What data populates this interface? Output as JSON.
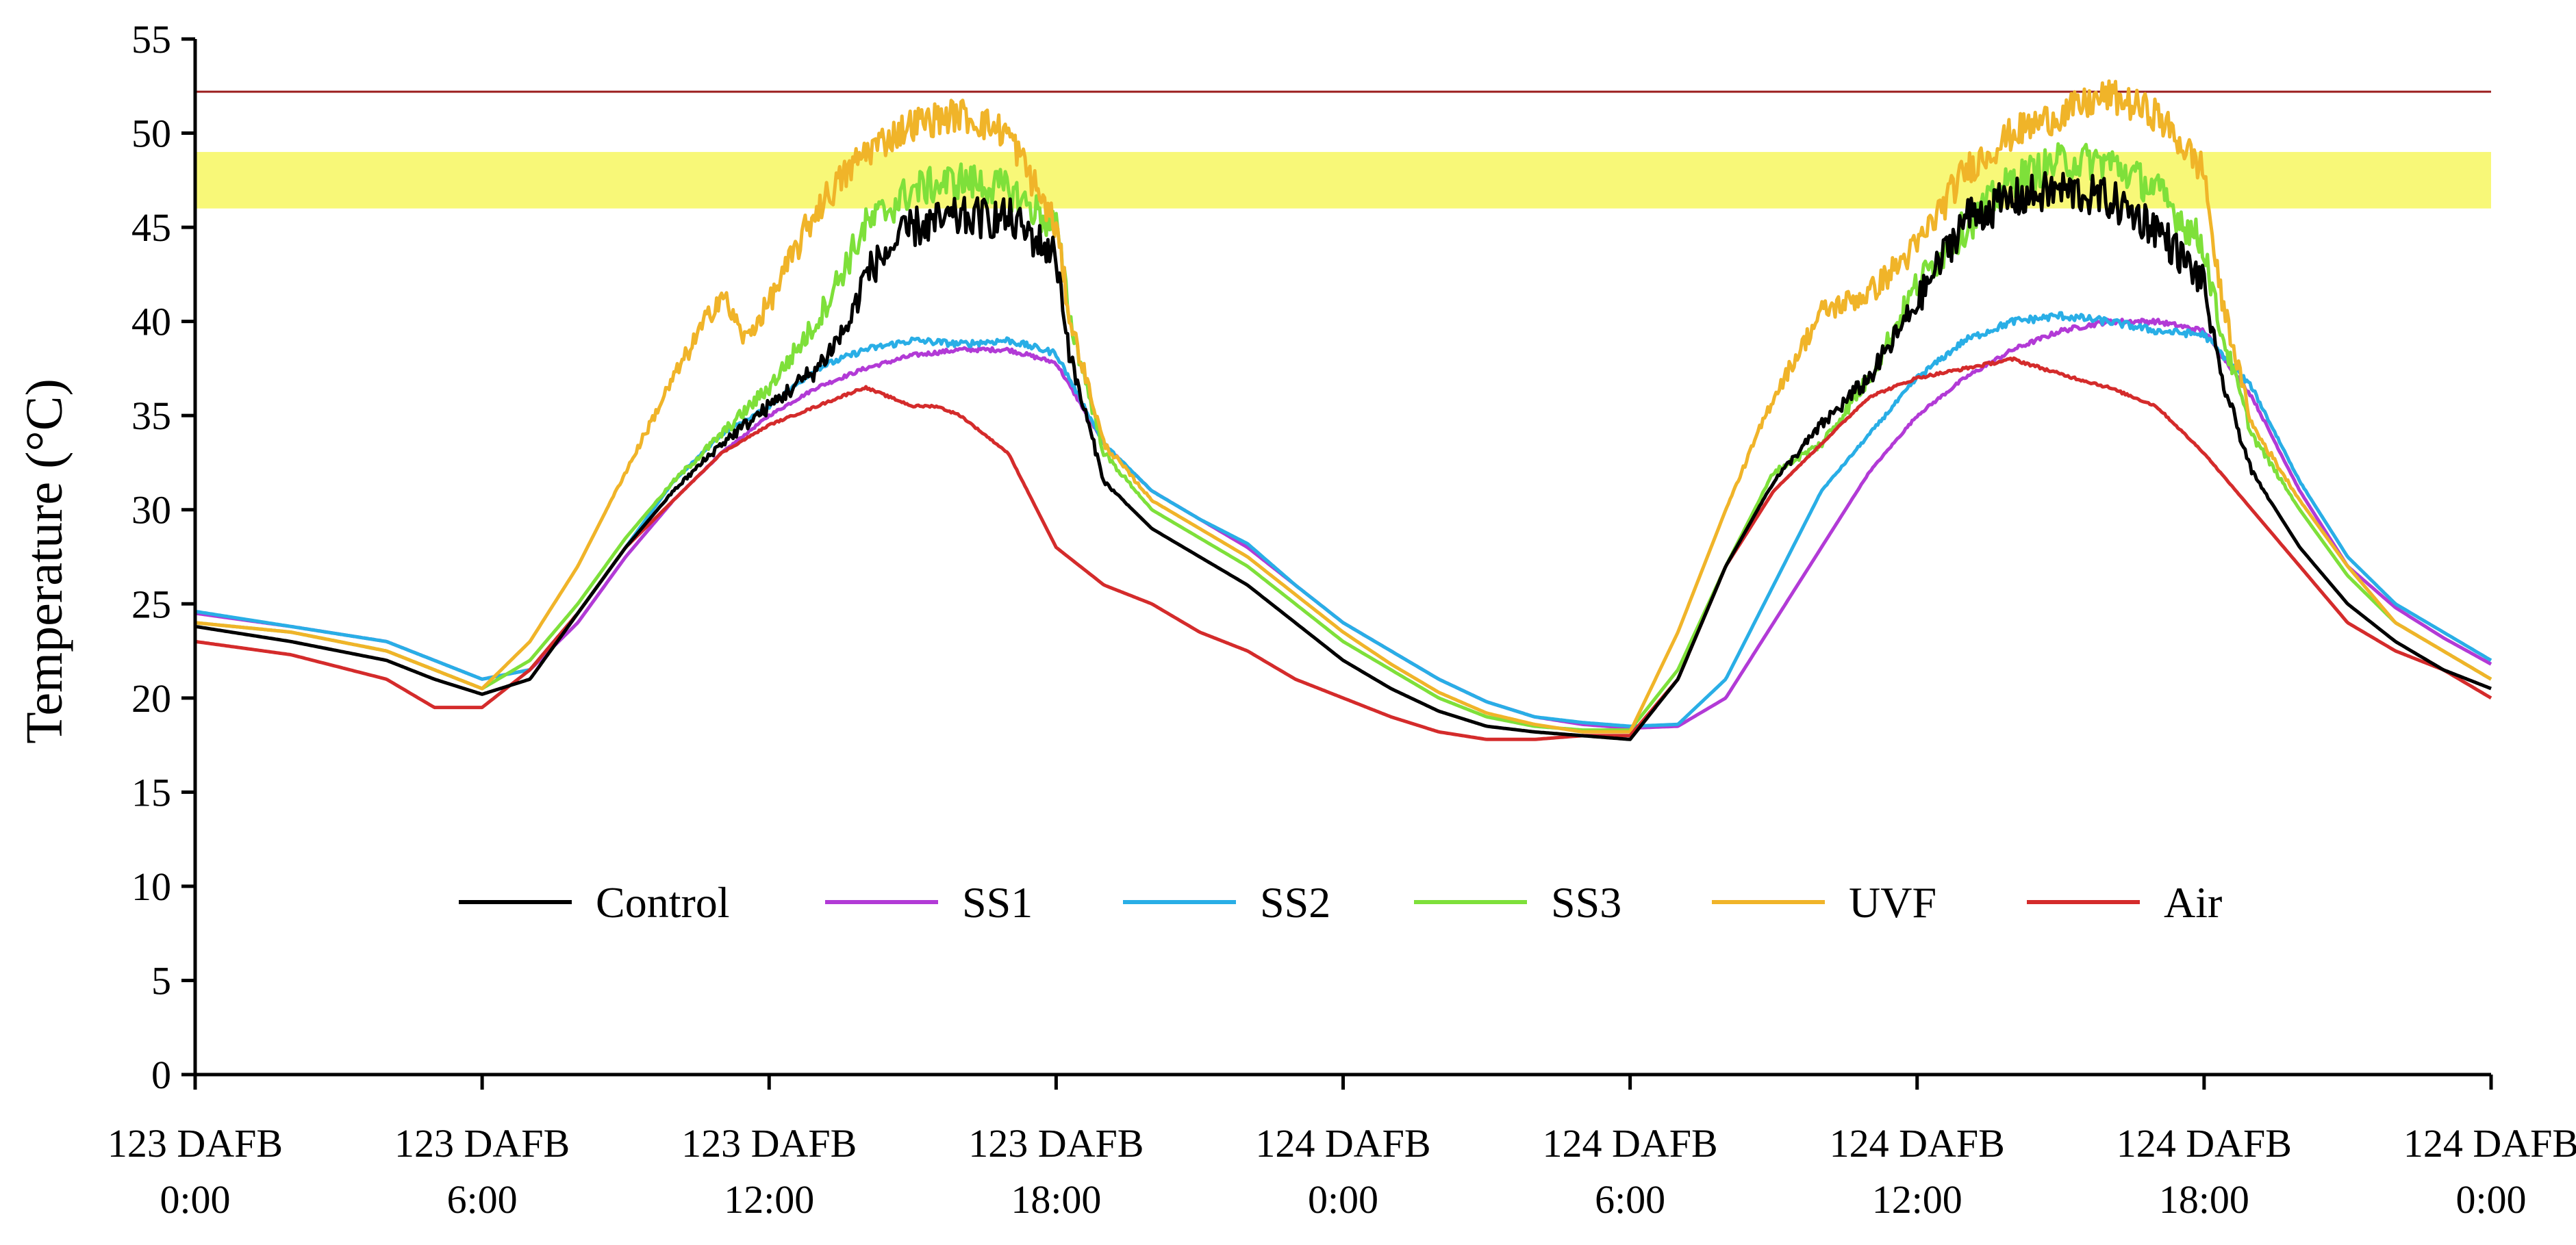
{
  "chart_data": {
    "type": "line",
    "title": "",
    "xlabel": "",
    "ylabel": "Temperature (°C)",
    "ylim": [
      0,
      55
    ],
    "xlim_hours": [
      0,
      48
    ],
    "yticks": [
      0,
      5,
      10,
      15,
      20,
      25,
      30,
      35,
      40,
      45,
      50,
      55
    ],
    "xticks": [
      {
        "hour": 0,
        "line1": "123 DAFB",
        "line2": "0:00"
      },
      {
        "hour": 6,
        "line1": "123 DAFB",
        "line2": "6:00"
      },
      {
        "hour": 12,
        "line1": "123 DAFB",
        "line2": "12:00"
      },
      {
        "hour": 18,
        "line1": "123 DAFB",
        "line2": "18:00"
      },
      {
        "hour": 24,
        "line1": "124 DAFB",
        "line2": "0:00"
      },
      {
        "hour": 30,
        "line1": "124 DAFB",
        "line2": "6:00"
      },
      {
        "hour": 36,
        "line1": "124 DAFB",
        "line2": "12:00"
      },
      {
        "hour": 42,
        "line1": "124 DAFB",
        "line2": "18:00"
      },
      {
        "hour": 48,
        "line1": "124 DAFB",
        "line2": "0:00"
      }
    ],
    "grid": false,
    "legend_position": "bottom-center",
    "reference_band": {
      "y_min": 46,
      "y_max": 49,
      "color": "#f8f878"
    },
    "reference_line": {
      "y": 52.2,
      "color": "#9b1c1c"
    },
    "series": [
      {
        "name": "SS1",
        "color": "#b23ad6",
        "noise": 0.2,
        "x": [
          0,
          2,
          4,
          5,
          6,
          7,
          8,
          9,
          10,
          11,
          12,
          13,
          14,
          15,
          16,
          17,
          18,
          19,
          20,
          21,
          22,
          23,
          24,
          25,
          26,
          27,
          28,
          29,
          30,
          31,
          32,
          33,
          34,
          35,
          36,
          37,
          38,
          39,
          40,
          41,
          42,
          43,
          44,
          45,
          46,
          47,
          48
        ],
        "y": [
          24.5,
          23.8,
          23.0,
          22.0,
          21.0,
          21.5,
          24.0,
          27.5,
          30.5,
          33.0,
          35.0,
          36.5,
          37.5,
          38.2,
          38.5,
          38.5,
          37.8,
          33.5,
          31.0,
          29.5,
          28.0,
          26.0,
          24.0,
          22.5,
          21.0,
          19.8,
          19.0,
          18.6,
          18.4,
          18.5,
          20.0,
          24.0,
          28.0,
          32.0,
          35.0,
          37.0,
          38.5,
          39.5,
          40.0,
          40.0,
          39.5,
          36.0,
          31.0,
          27.0,
          24.8,
          23.2,
          21.8
        ]
      },
      {
        "name": "SS2",
        "color": "#29aee6",
        "noise": 0.3,
        "x": [
          0,
          2,
          4,
          5,
          6,
          7,
          8,
          9,
          10,
          11,
          12,
          13,
          14,
          15,
          16,
          17,
          18,
          19,
          20,
          21,
          22,
          23,
          24,
          25,
          26,
          27,
          28,
          29,
          30,
          31,
          32,
          33,
          34,
          35,
          36,
          37,
          38,
          39,
          40,
          41,
          42,
          43,
          44,
          45,
          46,
          47,
          48
        ],
        "y": [
          24.6,
          23.8,
          23.0,
          22.0,
          21.0,
          21.5,
          24.5,
          28.0,
          31.5,
          34.0,
          35.5,
          37.5,
          38.5,
          39.0,
          38.8,
          39.0,
          38.3,
          33.5,
          31.0,
          29.5,
          28.2,
          26.0,
          24.0,
          22.5,
          21.0,
          19.8,
          19.0,
          18.7,
          18.5,
          18.6,
          21.0,
          26.0,
          31.0,
          34.0,
          37.0,
          39.0,
          40.0,
          40.3,
          40.0,
          39.5,
          39.3,
          36.5,
          31.5,
          27.5,
          25.0,
          23.5,
          22.0
        ]
      },
      {
        "name": "SS3",
        "color": "#7ee03a",
        "noise": 1.0,
        "x": [
          0,
          2,
          4,
          5,
          6,
          7,
          8,
          9,
          10,
          11,
          12,
          13,
          14,
          15,
          16,
          17,
          18,
          18.3,
          19,
          20,
          21,
          22,
          23,
          24,
          25,
          26,
          27,
          28,
          29,
          30,
          31,
          32,
          33,
          34,
          35,
          36,
          37,
          38,
          39,
          40,
          41,
          42,
          42.3,
          43,
          44,
          45,
          46,
          47,
          48
        ],
        "y": [
          24.0,
          23.5,
          22.5,
          21.5,
          20.5,
          22.0,
          25.0,
          28.5,
          31.5,
          34.0,
          36.5,
          40.0,
          45.0,
          47.0,
          47.5,
          47.0,
          45.0,
          40.0,
          33.0,
          30.0,
          28.5,
          27.0,
          25.0,
          23.0,
          21.5,
          20.0,
          19.0,
          18.5,
          18.3,
          18.3,
          21.5,
          27.0,
          32.0,
          33.5,
          37.0,
          42.0,
          45.0,
          47.5,
          48.5,
          48.5,
          47.0,
          44.0,
          40.0,
          34.0,
          30.0,
          26.5,
          24.0,
          22.5,
          21.0
        ]
      },
      {
        "name": "UVF",
        "color": "#f0b429",
        "noise": 0.9,
        "x": [
          0,
          2,
          4,
          5,
          6,
          7,
          8,
          9,
          10,
          11,
          11.5,
          12,
          13,
          14,
          15,
          16,
          17,
          18,
          18.3,
          19,
          20,
          21,
          22,
          23,
          24,
          25,
          26,
          27,
          28,
          29,
          30,
          31,
          32,
          33,
          34,
          35,
          36,
          37,
          38,
          39,
          40,
          41,
          42,
          42.3,
          43,
          44,
          45,
          46,
          47,
          48
        ],
        "y": [
          24.0,
          23.5,
          22.5,
          21.5,
          20.5,
          23.0,
          27.0,
          32.0,
          37.0,
          41.5,
          39.0,
          41.0,
          46.0,
          49.0,
          50.5,
          51.0,
          50.0,
          45.0,
          40.0,
          33.5,
          30.5,
          29.0,
          27.5,
          25.5,
          23.5,
          21.8,
          20.3,
          19.2,
          18.6,
          18.2,
          18.2,
          23.5,
          30.0,
          36.0,
          40.5,
          41.5,
          44.0,
          48.0,
          50.0,
          51.0,
          52.0,
          51.0,
          48.0,
          42.0,
          34.5,
          30.5,
          27.0,
          24.0,
          22.5,
          21.0
        ]
      },
      {
        "name": "Air",
        "color": "#d42b2b",
        "noise": 0.15,
        "x": [
          0,
          2,
          4,
          5,
          6,
          7,
          8,
          9,
          10,
          11,
          12,
          13,
          14,
          15,
          15.5,
          16,
          17,
          18,
          19,
          20,
          21,
          22,
          23,
          24,
          25,
          26,
          27,
          28,
          29,
          30,
          31,
          32,
          33,
          34,
          35,
          36,
          37,
          38,
          39,
          40,
          41,
          42,
          43,
          44,
          45,
          46,
          47,
          48
        ],
        "y": [
          23.0,
          22.3,
          21.0,
          19.5,
          19.5,
          21.5,
          24.5,
          28.0,
          30.5,
          33.0,
          34.5,
          35.5,
          36.5,
          35.5,
          35.5,
          35.0,
          33.0,
          28.0,
          26.0,
          25.0,
          23.5,
          22.5,
          21.0,
          20.0,
          19.0,
          18.2,
          17.8,
          17.8,
          18.0,
          18.0,
          21.0,
          27.0,
          31.0,
          33.5,
          36.0,
          37.0,
          37.5,
          38.0,
          37.2,
          36.5,
          35.5,
          33.0,
          30.0,
          27.0,
          24.0,
          22.5,
          21.5,
          20.0
        ]
      },
      {
        "name": "Control",
        "color": "#000000",
        "noise": 1.1,
        "x": [
          0,
          2,
          4,
          5,
          6,
          7,
          8,
          9,
          10,
          11,
          12,
          13,
          13.7,
          14,
          15,
          16,
          17,
          18,
          18.3,
          19,
          20,
          21,
          22,
          23,
          24,
          25,
          26,
          27,
          28,
          29,
          30,
          31,
          32,
          33,
          34,
          35,
          36,
          37,
          38,
          39,
          40,
          41,
          42,
          42.3,
          43,
          44,
          45,
          46,
          47,
          48
        ],
        "y": [
          23.8,
          23.0,
          22.0,
          21.0,
          20.2,
          21.0,
          24.5,
          28.0,
          31.0,
          33.5,
          35.5,
          37.5,
          40.0,
          42.5,
          45.0,
          45.5,
          45.5,
          43.5,
          38.0,
          31.5,
          29.0,
          27.5,
          26.0,
          24.0,
          22.0,
          20.5,
          19.3,
          18.5,
          18.2,
          18.0,
          17.8,
          21.0,
          27.0,
          31.5,
          34.5,
          37.0,
          41.0,
          45.5,
          46.5,
          47.0,
          46.5,
          45.0,
          42.0,
          37.5,
          32.0,
          28.0,
          25.0,
          23.0,
          21.5,
          20.5
        ]
      }
    ]
  }
}
